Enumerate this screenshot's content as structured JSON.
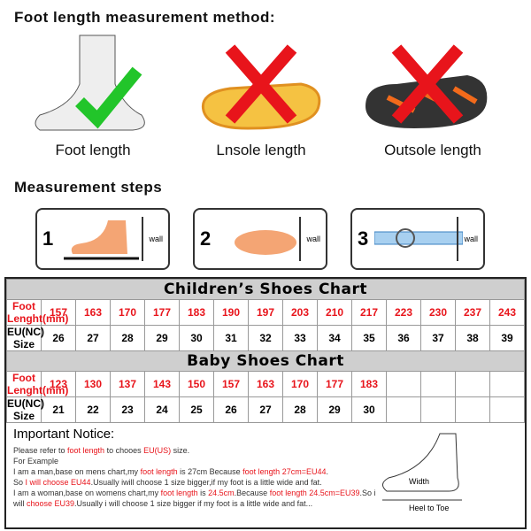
{
  "title": "Foot length measurement method:",
  "methods": [
    {
      "label": "Foot length",
      "status": "correct"
    },
    {
      "label": "Lnsole length",
      "status": "wrong"
    },
    {
      "label": "Outsole length",
      "status": "wrong"
    }
  ],
  "colors": {
    "check": "#22c52a",
    "cross": "#e8141b",
    "red_text": "#e8141b",
    "header_bg": "#cfcfcf"
  },
  "steps_title": "Measurement steps",
  "steps": [
    {
      "num": "1",
      "wall": "wall"
    },
    {
      "num": "2",
      "wall": "wall"
    },
    {
      "num": "3",
      "wall": "wall"
    }
  ],
  "children": {
    "title": "Children’s Shoes Chart",
    "row1_label": "Foot Lenght(mm)",
    "row2_label": "EU(NC) Size",
    "lengths": [
      "157",
      "163",
      "170",
      "177",
      "183",
      "190",
      "197",
      "203",
      "210",
      "217",
      "223",
      "230",
      "237",
      "243"
    ],
    "sizes": [
      "26",
      "27",
      "28",
      "29",
      "30",
      "31",
      "32",
      "33",
      "34",
      "35",
      "36",
      "37",
      "38",
      "39"
    ]
  },
  "baby": {
    "title": "Baby Shoes Chart",
    "row1_label": "Foot Lenght(mm)",
    "row2_label": "EU(NC) Size",
    "lengths": [
      "123",
      "130",
      "137",
      "143",
      "150",
      "157",
      "163",
      "170",
      "177",
      "183",
      "",
      "",
      "",
      ""
    ],
    "sizes": [
      "21",
      "22",
      "23",
      "24",
      "25",
      "26",
      "27",
      "28",
      "29",
      "30",
      "",
      "",
      "",
      ""
    ]
  },
  "notice": {
    "title": "Important Notice:",
    "segments": [
      {
        "t": "Please refer to "
      },
      {
        "t": "foot length",
        "red": true
      },
      {
        "t": " to chooes "
      },
      {
        "t": "EU(US)",
        "red": true
      },
      {
        "t": " size."
      },
      {
        "br": true
      },
      {
        "t": "For Example"
      },
      {
        "br": true
      },
      {
        "t": "I am a man,base on mens chart,my "
      },
      {
        "t": "foot length",
        "red": true
      },
      {
        "t": " is 27cm Because "
      },
      {
        "t": "foot length 27cm=EU44",
        "red": true
      },
      {
        "t": "."
      },
      {
        "br": true
      },
      {
        "t": "So "
      },
      {
        "t": "I will choose EU44",
        "red": true
      },
      {
        "t": ".Usually iwill choose 1 size bigger,if my foot is a little wide and fat."
      },
      {
        "br": true
      },
      {
        "t": "I am a woman,base on womens chart,my "
      },
      {
        "t": "foot length",
        "red": true
      },
      {
        "t": " is "
      },
      {
        "t": "24.5cm",
        "red": true
      },
      {
        "t": ".Because "
      },
      {
        "t": "foot length 24.5cm=EU39",
        "red": true
      },
      {
        "t": ".So i will "
      },
      {
        "t": "choose EU39",
        "red": true
      },
      {
        "t": ".Usually i will choose 1 size bigger if my foot is a little wide and fat..."
      }
    ],
    "diagram": {
      "width": "Width",
      "heel_to_toe": "Heel to Toe"
    }
  }
}
